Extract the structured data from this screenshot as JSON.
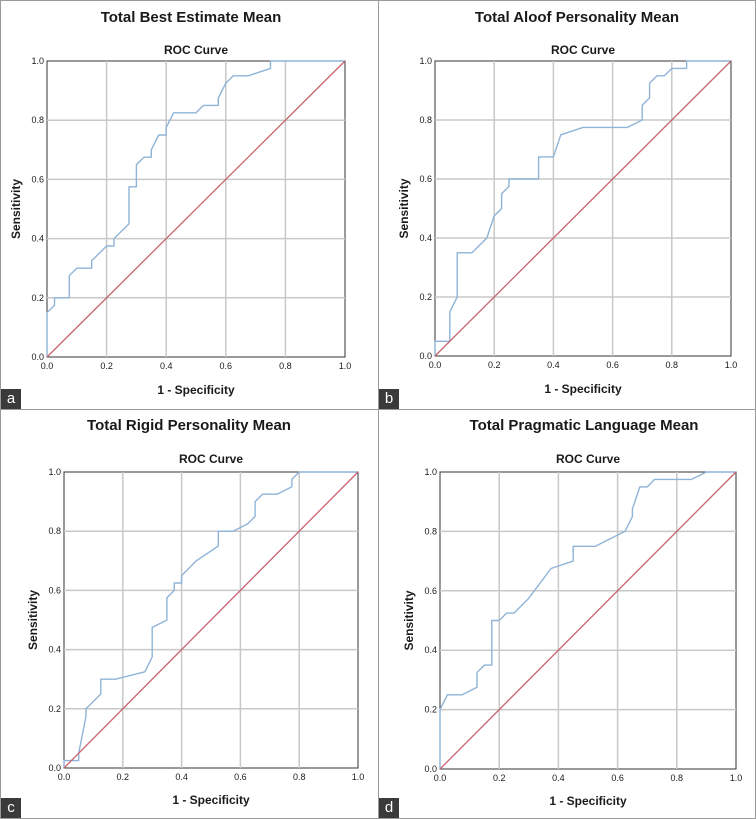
{
  "figure": {
    "panels": [
      {
        "label": "a",
        "title": "Total Best Estimate Mean"
      },
      {
        "label": "b",
        "title": "Total Aloof Personality Mean"
      },
      {
        "label": "c",
        "title": "Total Rigid Personality Mean"
      },
      {
        "label": "d",
        "title": "Total Pragmatic Language Mean"
      }
    ]
  },
  "colors": {
    "roc_line": "#8fb4d8",
    "reference_line": "#c8636f",
    "grid": "#c8c8c8",
    "axis": "#333333"
  },
  "chart_data": [
    {
      "type": "line",
      "title": "Total Best Estimate Mean",
      "subtitle": "ROC Curve",
      "xlabel": "1 - Specificity",
      "ylabel": "Sensitivity",
      "xlim": [
        0,
        1
      ],
      "ylim": [
        0,
        1
      ],
      "xticks": [
        "0.0",
        "0.2",
        "0.4",
        "0.6",
        "0.8",
        "1.0"
      ],
      "yticks": [
        "0.0",
        "0.2",
        "0.4",
        "0.6",
        "0.8",
        "1.0"
      ],
      "grid": true,
      "series": [
        {
          "name": "ROC",
          "x": [
            0,
            0,
            0.025,
            0.025,
            0.075,
            0.075,
            0.1,
            0.15,
            0.15,
            0.2,
            0.225,
            0.225,
            0.275,
            0.275,
            0.3,
            0.3,
            0.325,
            0.35,
            0.35,
            0.375,
            0.4,
            0.4,
            0.425,
            0.5,
            0.525,
            0.575,
            0.575,
            0.6,
            0.625,
            0.675,
            0.75,
            0.75,
            0.85,
            1.0
          ],
          "y": [
            0,
            0.15,
            0.175,
            0.2,
            0.2,
            0.275,
            0.3,
            0.3,
            0.325,
            0.375,
            0.375,
            0.4,
            0.45,
            0.575,
            0.575,
            0.65,
            0.675,
            0.675,
            0.7,
            0.75,
            0.75,
            0.775,
            0.825,
            0.825,
            0.85,
            0.85,
            0.875,
            0.925,
            0.95,
            0.95,
            0.975,
            1.0,
            1.0,
            1.0
          ]
        },
        {
          "name": "Reference",
          "x": [
            0,
            1
          ],
          "y": [
            0,
            1
          ]
        }
      ]
    },
    {
      "type": "line",
      "title": "Total Aloof Personality Mean",
      "subtitle": "ROC Curve",
      "xlabel": "1 - Specificity",
      "ylabel": "Sensitivity",
      "xlim": [
        0,
        1
      ],
      "ylim": [
        0,
        1
      ],
      "xticks": [
        "0.0",
        "0.2",
        "0.4",
        "0.6",
        "0.8",
        "1.0"
      ],
      "yticks": [
        "0.0",
        "0.2",
        "0.4",
        "0.6",
        "0.8",
        "1.0"
      ],
      "grid": true,
      "series": [
        {
          "name": "ROC",
          "x": [
            0,
            0,
            0.05,
            0.05,
            0.075,
            0.075,
            0.125,
            0.175,
            0.2,
            0.2,
            0.225,
            0.225,
            0.25,
            0.25,
            0.35,
            0.35,
            0.4,
            0.425,
            0.5,
            0.65,
            0.7,
            0.7,
            0.725,
            0.725,
            0.75,
            0.775,
            0.8,
            0.8,
            0.85,
            0.85,
            1.0
          ],
          "y": [
            0,
            0.05,
            0.05,
            0.15,
            0.2,
            0.35,
            0.35,
            0.4,
            0.475,
            0.475,
            0.5,
            0.55,
            0.575,
            0.6,
            0.6,
            0.675,
            0.675,
            0.75,
            0.775,
            0.775,
            0.8,
            0.85,
            0.875,
            0.925,
            0.95,
            0.95,
            0.975,
            0.975,
            0.975,
            1.0,
            1.0
          ]
        },
        {
          "name": "Reference",
          "x": [
            0,
            1
          ],
          "y": [
            0,
            1
          ]
        }
      ]
    },
    {
      "type": "line",
      "title": "Total Rigid Personality Mean",
      "subtitle": "ROC Curve",
      "xlabel": "1 - Specificity",
      "ylabel": "Sensitivity",
      "xlim": [
        0,
        1
      ],
      "ylim": [
        0,
        1
      ],
      "xticks": [
        "0.0",
        "0.2",
        "0.4",
        "0.6",
        "0.8",
        "1.0"
      ],
      "yticks": [
        "0.0",
        "0.2",
        "0.4",
        "0.6",
        "0.8",
        "1.0"
      ],
      "grid": true,
      "series": [
        {
          "name": "ROC",
          "x": [
            0,
            0,
            0.05,
            0.05,
            0.075,
            0.075,
            0.1,
            0.125,
            0.125,
            0.175,
            0.275,
            0.3,
            0.3,
            0.35,
            0.35,
            0.375,
            0.375,
            0.4,
            0.4,
            0.425,
            0.45,
            0.525,
            0.525,
            0.575,
            0.625,
            0.65,
            0.65,
            0.675,
            0.725,
            0.775,
            0.775,
            0.8,
            1.0
          ],
          "y": [
            0,
            0.025,
            0.025,
            0.05,
            0.175,
            0.2,
            0.225,
            0.25,
            0.3,
            0.3,
            0.325,
            0.375,
            0.475,
            0.5,
            0.575,
            0.6,
            0.625,
            0.625,
            0.65,
            0.675,
            0.7,
            0.75,
            0.8,
            0.8,
            0.825,
            0.85,
            0.9,
            0.925,
            0.925,
            0.95,
            0.975,
            1.0,
            1.0
          ]
        },
        {
          "name": "Reference",
          "x": [
            0,
            1
          ],
          "y": [
            0,
            1
          ]
        }
      ]
    },
    {
      "type": "line",
      "title": "Total Pragmatic Language Mean",
      "subtitle": "ROC Curve",
      "xlabel": "1 - Specificity",
      "ylabel": "Sensitivity",
      "xlim": [
        0,
        1
      ],
      "ylim": [
        0,
        1
      ],
      "xticks": [
        "0.0",
        "0.2",
        "0.4",
        "0.6",
        "0.8",
        "1.0"
      ],
      "yticks": [
        "0.0",
        "0.2",
        "0.4",
        "0.6",
        "0.8",
        "1.0"
      ],
      "grid": true,
      "series": [
        {
          "name": "ROC",
          "x": [
            0,
            0,
            0.025,
            0.075,
            0.125,
            0.125,
            0.15,
            0.175,
            0.175,
            0.2,
            0.225,
            0.25,
            0.3,
            0.375,
            0.45,
            0.45,
            0.525,
            0.575,
            0.625,
            0.65,
            0.65,
            0.675,
            0.7,
            0.725,
            0.75,
            0.85,
            0.9,
            1.0
          ],
          "y": [
            0,
            0.2,
            0.25,
            0.25,
            0.275,
            0.325,
            0.35,
            0.35,
            0.5,
            0.5,
            0.525,
            0.525,
            0.575,
            0.675,
            0.7,
            0.75,
            0.75,
            0.775,
            0.8,
            0.85,
            0.875,
            0.95,
            0.95,
            0.975,
            0.975,
            0.975,
            1.0,
            1.0
          ]
        },
        {
          "name": "Reference",
          "x": [
            0,
            1
          ],
          "y": [
            0,
            1
          ]
        }
      ]
    }
  ]
}
